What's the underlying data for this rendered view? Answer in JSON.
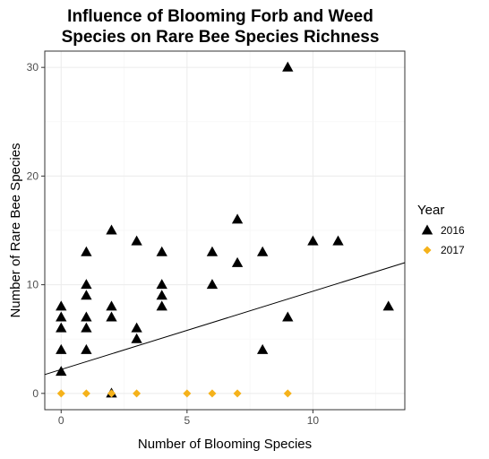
{
  "chart_data": {
    "type": "scatter",
    "title_lines": [
      "Influence of Blooming Forb and Weed",
      "Species on Rare Bee Species Richness"
    ],
    "xlabel": "Number of Blooming Species",
    "ylabel": "Number of Rare Bee Species",
    "xlim": [
      -0.65,
      13.65
    ],
    "ylim": [
      -1.5,
      31.5
    ],
    "x_ticks": [
      0,
      5,
      10
    ],
    "y_ticks": [
      0,
      10,
      20,
      30
    ],
    "grid": true,
    "legend": {
      "title": "Year",
      "placement": "right",
      "entries": [
        "2016",
        "2017"
      ]
    },
    "series": [
      {
        "name": "2016",
        "marker": "triangle",
        "color": "#000000",
        "points": [
          [
            0,
            2
          ],
          [
            0,
            4
          ],
          [
            0,
            6
          ],
          [
            0,
            7
          ],
          [
            0,
            8
          ],
          [
            1,
            4
          ],
          [
            1,
            6
          ],
          [
            1,
            7
          ],
          [
            1,
            9
          ],
          [
            1,
            10
          ],
          [
            1,
            13
          ],
          [
            2,
            0
          ],
          [
            2,
            7
          ],
          [
            2,
            8
          ],
          [
            2,
            15
          ],
          [
            3,
            5
          ],
          [
            3,
            6
          ],
          [
            3,
            14
          ],
          [
            4,
            8
          ],
          [
            4,
            9
          ],
          [
            4,
            10
          ],
          [
            4,
            13
          ],
          [
            6,
            10
          ],
          [
            6,
            13
          ],
          [
            7,
            12
          ],
          [
            7,
            16
          ],
          [
            8,
            4
          ],
          [
            8,
            13
          ],
          [
            9,
            7
          ],
          [
            9,
            30
          ],
          [
            10,
            14
          ],
          [
            11,
            14
          ],
          [
            13,
            8
          ]
        ]
      },
      {
        "name": "2017",
        "marker": "diamond",
        "color": "#f5b21b",
        "points": [
          [
            0,
            0
          ],
          [
            1,
            0
          ],
          [
            2,
            0
          ],
          [
            3,
            0
          ],
          [
            5,
            0
          ],
          [
            6,
            0
          ],
          [
            7,
            0
          ],
          [
            9,
            0
          ]
        ]
      }
    ],
    "trendline": {
      "intercept": 2.2,
      "slope": 0.72,
      "color": "#000000"
    }
  }
}
